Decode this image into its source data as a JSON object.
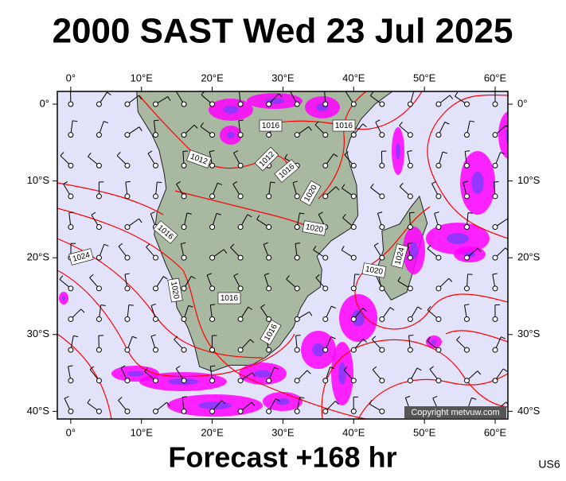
{
  "title": "2000 SAST Wed 23 Jul 2025",
  "footer": "Forecast +168 hr",
  "code": "US6",
  "copyright": "Copyright metvuw.com",
  "map": {
    "lonlim": [
      -1.9,
      61.8
    ],
    "latlim": [
      1.66,
      -41
    ],
    "lon_ticks": [
      {
        "value": 0,
        "label": "0°"
      },
      {
        "value": 10,
        "label": "10°E"
      },
      {
        "value": 20,
        "label": "20°E"
      },
      {
        "value": 30,
        "label": "30°E"
      },
      {
        "value": 40,
        "label": "40°E"
      },
      {
        "value": 50,
        "label": "50°E"
      },
      {
        "value": 60,
        "label": "60°E"
      }
    ],
    "lat_ticks": [
      {
        "value": 0,
        "label": "0°"
      },
      {
        "value": -10,
        "label": "10°S"
      },
      {
        "value": -20,
        "label": "20°S"
      },
      {
        "value": -30,
        "label": "30°S"
      },
      {
        "value": -40,
        "label": "40°S"
      }
    ]
  },
  "isobar_labels": [
    "1016",
    "1016",
    "1012",
    "1012",
    "1016",
    "1020",
    "1020",
    "1016",
    "1024",
    "1024",
    "1020",
    "1020",
    "1016",
    "1016"
  ]
}
